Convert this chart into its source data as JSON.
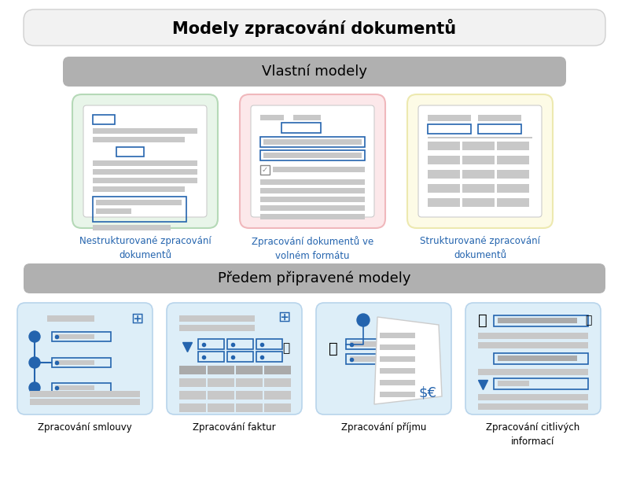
{
  "title": "Modely zpracování dokumentů",
  "section1_title": "Vlastní modely",
  "section2_title": "Předem připravené modely",
  "custom_models": [
    {
      "label": "Nestrukturované zpracování\ndokumentů",
      "bg": "#e8f5e9",
      "border": "#b5d9b7"
    },
    {
      "label": "Zpracování dokumentů ve\nvolném formátu",
      "bg": "#fce8ea",
      "border": "#f0b8bc"
    },
    {
      "label": "Strukturované zpracování\ndokumentů",
      "bg": "#fdfbe6",
      "border": "#ede9b0"
    }
  ],
  "prebuilt_models": [
    {
      "label": "Zpracování smlouvy"
    },
    {
      "label": "Zpracování faktur"
    },
    {
      "label": "Zpracování příjmu"
    },
    {
      "label": "Zpracování citlivých\ninformací"
    }
  ],
  "label_color": "#2464ae",
  "gray_line": "#cccccc",
  "dark_gray": "#888888",
  "med_gray": "#aaaaaa",
  "light_gray": "#c8c8c8",
  "lighter_gray": "#dedede",
  "blue_accent": "#2464ae",
  "white": "#ffffff",
  "title_bg": "#f2f2f2",
  "title_border": "#d0d0d0",
  "section_bg": "#b0b0b0",
  "prebuilt_bg": "#ddeef8",
  "prebuilt_border": "#b8d4eb",
  "outer_bg": "#ffffff"
}
